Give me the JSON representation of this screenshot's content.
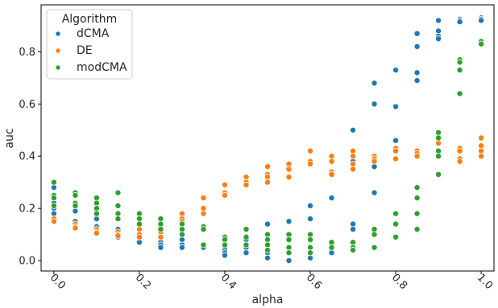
{
  "chart_data": {
    "type": "scatter",
    "xlabel": "alpha",
    "ylabel": "auc",
    "xlim": [
      -0.03,
      1.03
    ],
    "ylim": [
      -0.04,
      0.98
    ],
    "xticks": [
      0.0,
      0.2,
      0.4,
      0.6,
      0.8,
      1.0
    ],
    "xtick_labels": [
      "0.0",
      "0.2",
      "0.4",
      "0.6",
      "0.8",
      "1.0"
    ],
    "yticks": [
      0.0,
      0.2,
      0.4,
      0.6,
      0.8
    ],
    "ytick_labels": [
      "0.0",
      "0.2",
      "0.4",
      "0.6",
      "0.8"
    ],
    "grid": false,
    "legend": {
      "title": "Algorithm",
      "placement": "top-left"
    },
    "series": [
      {
        "name": "dCMA",
        "color": "#1f77b4",
        "points": [
          [
            0.0,
            0.28
          ],
          [
            0.0,
            0.22
          ],
          [
            0.0,
            0.2
          ],
          [
            0.0,
            0.18
          ],
          [
            0.05,
            0.19
          ],
          [
            0.05,
            0.15
          ],
          [
            0.05,
            0.14
          ],
          [
            0.1,
            0.16
          ],
          [
            0.1,
            0.13
          ],
          [
            0.1,
            0.11
          ],
          [
            0.15,
            0.12
          ],
          [
            0.15,
            0.1
          ],
          [
            0.15,
            0.09
          ],
          [
            0.2,
            0.1
          ],
          [
            0.2,
            0.09
          ],
          [
            0.2,
            0.07
          ],
          [
            0.25,
            0.09
          ],
          [
            0.25,
            0.07
          ],
          [
            0.25,
            0.06
          ],
          [
            0.25,
            0.05
          ],
          [
            0.3,
            0.08
          ],
          [
            0.3,
            0.06
          ],
          [
            0.3,
            0.05
          ],
          [
            0.35,
            0.06
          ],
          [
            0.35,
            0.05
          ],
          [
            0.4,
            0.05
          ],
          [
            0.4,
            0.04
          ],
          [
            0.4,
            0.03
          ],
          [
            0.4,
            0.02
          ],
          [
            0.45,
            0.08
          ],
          [
            0.45,
            0.05
          ],
          [
            0.45,
            0.03
          ],
          [
            0.5,
            0.14
          ],
          [
            0.5,
            0.06
          ],
          [
            0.5,
            0.03
          ],
          [
            0.5,
            0.01
          ],
          [
            0.55,
            0.15
          ],
          [
            0.55,
            0.05
          ],
          [
            0.55,
            0.03
          ],
          [
            0.55,
            0.0
          ],
          [
            0.6,
            0.21
          ],
          [
            0.6,
            0.16
          ],
          [
            0.6,
            0.05
          ],
          [
            0.6,
            0.01
          ],
          [
            0.65,
            0.24
          ],
          [
            0.65,
            0.06
          ],
          [
            0.65,
            0.04
          ],
          [
            0.65,
            0.03
          ],
          [
            0.7,
            0.5
          ],
          [
            0.7,
            0.38
          ],
          [
            0.7,
            0.14
          ],
          [
            0.7,
            0.12
          ],
          [
            0.75,
            0.68
          ],
          [
            0.75,
            0.6
          ],
          [
            0.75,
            0.36
          ],
          [
            0.75,
            0.26
          ],
          [
            0.8,
            0.73
          ],
          [
            0.8,
            0.59
          ],
          [
            0.8,
            0.46
          ],
          [
            0.8,
            0.42
          ],
          [
            0.85,
            0.87
          ],
          [
            0.85,
            0.82
          ],
          [
            0.85,
            0.72
          ],
          [
            0.85,
            0.69
          ],
          [
            0.9,
            0.92
          ],
          [
            0.9,
            0.88
          ],
          [
            0.9,
            0.86
          ],
          [
            0.9,
            0.85
          ],
          [
            0.95,
            0.925
          ],
          [
            0.95,
            0.92
          ],
          [
            0.95,
            0.915
          ],
          [
            1.0,
            0.93
          ],
          [
            1.0,
            0.925
          ],
          [
            1.0,
            0.92
          ]
        ]
      },
      {
        "name": "DE",
        "color": "#ff7f0e",
        "points": [
          [
            0.0,
            0.16
          ],
          [
            0.0,
            0.15
          ],
          [
            0.05,
            0.14
          ],
          [
            0.05,
            0.13
          ],
          [
            0.05,
            0.125
          ],
          [
            0.1,
            0.12
          ],
          [
            0.1,
            0.11
          ],
          [
            0.1,
            0.105
          ],
          [
            0.15,
            0.11
          ],
          [
            0.15,
            0.1
          ],
          [
            0.15,
            0.095
          ],
          [
            0.2,
            0.12
          ],
          [
            0.2,
            0.1
          ],
          [
            0.2,
            0.09
          ],
          [
            0.25,
            0.13
          ],
          [
            0.25,
            0.11
          ],
          [
            0.25,
            0.09
          ],
          [
            0.3,
            0.18
          ],
          [
            0.3,
            0.16
          ],
          [
            0.3,
            0.15
          ],
          [
            0.35,
            0.24
          ],
          [
            0.35,
            0.2
          ],
          [
            0.35,
            0.18
          ],
          [
            0.4,
            0.29
          ],
          [
            0.4,
            0.26
          ],
          [
            0.4,
            0.25
          ],
          [
            0.45,
            0.32
          ],
          [
            0.45,
            0.3
          ],
          [
            0.45,
            0.29
          ],
          [
            0.5,
            0.36
          ],
          [
            0.5,
            0.33
          ],
          [
            0.5,
            0.32
          ],
          [
            0.5,
            0.3
          ],
          [
            0.55,
            0.37
          ],
          [
            0.55,
            0.35
          ],
          [
            0.55,
            0.32
          ],
          [
            0.6,
            0.42
          ],
          [
            0.6,
            0.38
          ],
          [
            0.6,
            0.37
          ],
          [
            0.65,
            0.4
          ],
          [
            0.65,
            0.38
          ],
          [
            0.65,
            0.34
          ],
          [
            0.65,
            0.33
          ],
          [
            0.7,
            0.42
          ],
          [
            0.7,
            0.4
          ],
          [
            0.7,
            0.37
          ],
          [
            0.7,
            0.35
          ],
          [
            0.75,
            0.4
          ],
          [
            0.75,
            0.39
          ],
          [
            0.75,
            0.38
          ],
          [
            0.8,
            0.43
          ],
          [
            0.8,
            0.42
          ],
          [
            0.8,
            0.39
          ],
          [
            0.85,
            0.42
          ],
          [
            0.85,
            0.41
          ],
          [
            0.85,
            0.4
          ],
          [
            0.9,
            0.45
          ],
          [
            0.9,
            0.41
          ],
          [
            0.9,
            0.4
          ],
          [
            0.95,
            0.43
          ],
          [
            0.95,
            0.42
          ],
          [
            0.95,
            0.39
          ],
          [
            0.95,
            0.38
          ],
          [
            1.0,
            0.47
          ],
          [
            1.0,
            0.44
          ],
          [
            1.0,
            0.42
          ],
          [
            1.0,
            0.4
          ]
        ]
      },
      {
        "name": "modCMA",
        "color": "#2ca02c",
        "points": [
          [
            0.0,
            0.3
          ],
          [
            0.0,
            0.25
          ],
          [
            0.0,
            0.24
          ],
          [
            0.0,
            0.21
          ],
          [
            0.05,
            0.26
          ],
          [
            0.05,
            0.25
          ],
          [
            0.05,
            0.22
          ],
          [
            0.05,
            0.21
          ],
          [
            0.1,
            0.24
          ],
          [
            0.1,
            0.22
          ],
          [
            0.1,
            0.2
          ],
          [
            0.1,
            0.18
          ],
          [
            0.15,
            0.26
          ],
          [
            0.15,
            0.21
          ],
          [
            0.15,
            0.18
          ],
          [
            0.15,
            0.16
          ],
          [
            0.2,
            0.18
          ],
          [
            0.2,
            0.16
          ],
          [
            0.2,
            0.14
          ],
          [
            0.25,
            0.16
          ],
          [
            0.25,
            0.14
          ],
          [
            0.25,
            0.12
          ],
          [
            0.3,
            0.14
          ],
          [
            0.3,
            0.12
          ],
          [
            0.3,
            0.1
          ],
          [
            0.35,
            0.13
          ],
          [
            0.35,
            0.12
          ],
          [
            0.35,
            0.06
          ],
          [
            0.4,
            0.09
          ],
          [
            0.4,
            0.08
          ],
          [
            0.4,
            0.06
          ],
          [
            0.45,
            0.12
          ],
          [
            0.45,
            0.09
          ],
          [
            0.45,
            0.06
          ],
          [
            0.5,
            0.1
          ],
          [
            0.5,
            0.08
          ],
          [
            0.5,
            0.06
          ],
          [
            0.5,
            0.04
          ],
          [
            0.55,
            0.1
          ],
          [
            0.55,
            0.08
          ],
          [
            0.55,
            0.05
          ],
          [
            0.55,
            0.03
          ],
          [
            0.6,
            0.1
          ],
          [
            0.6,
            0.08
          ],
          [
            0.6,
            0.05
          ],
          [
            0.6,
            0.03
          ],
          [
            0.65,
            0.07
          ],
          [
            0.65,
            0.05
          ],
          [
            0.7,
            0.07
          ],
          [
            0.7,
            0.05
          ],
          [
            0.7,
            0.04
          ],
          [
            0.75,
            0.12
          ],
          [
            0.75,
            0.1
          ],
          [
            0.75,
            0.05
          ],
          [
            0.8,
            0.18
          ],
          [
            0.8,
            0.14
          ],
          [
            0.8,
            0.09
          ],
          [
            0.85,
            0.28
          ],
          [
            0.85,
            0.24
          ],
          [
            0.85,
            0.18
          ],
          [
            0.85,
            0.12
          ],
          [
            0.9,
            0.49
          ],
          [
            0.9,
            0.47
          ],
          [
            0.9,
            0.42
          ],
          [
            0.9,
            0.4
          ],
          [
            0.9,
            0.33
          ],
          [
            0.95,
            0.77
          ],
          [
            0.95,
            0.76
          ],
          [
            0.95,
            0.73
          ],
          [
            0.95,
            0.64
          ],
          [
            1.0,
            0.84
          ],
          [
            1.0,
            0.83
          ]
        ]
      }
    ]
  }
}
